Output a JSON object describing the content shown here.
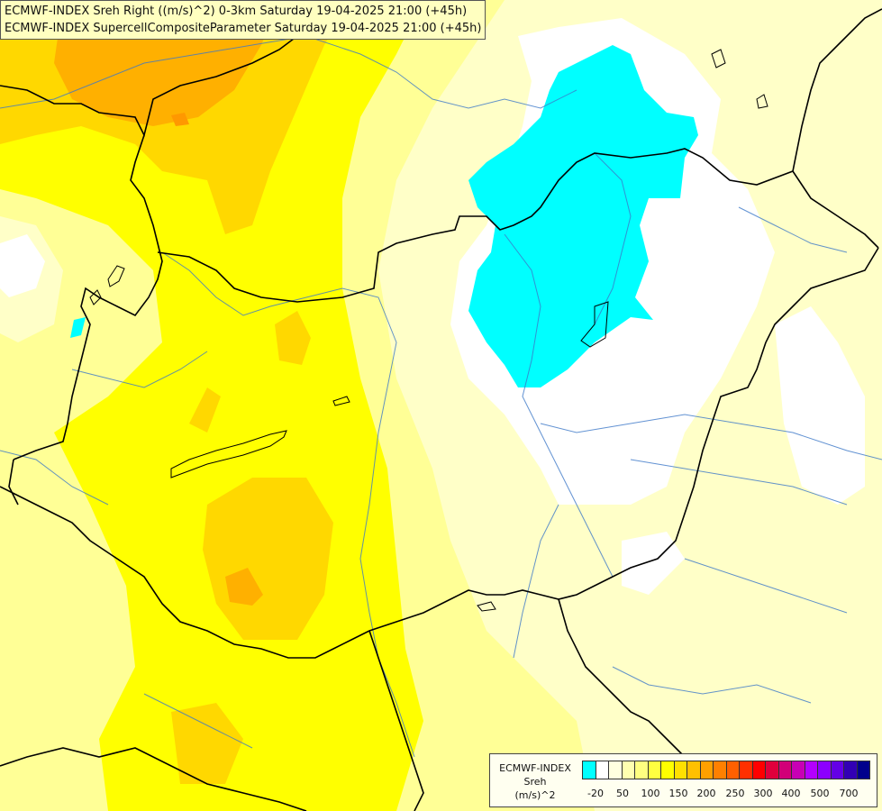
{
  "title_lines": [
    "ECMWF-INDEX Sreh Right ((m/s)^2) 0-3km Saturday 19-04-2025 21:00 (+45h)",
    "ECMWF-INDEX SupercellCompositeParameter Saturday 19-04-2025 21:00 (+45h)"
  ],
  "legend": {
    "model": "ECMWF-INDEX",
    "param": "Sreh",
    "unit": "(m/s)^2",
    "colors": [
      "#00ffff",
      "#ffffff",
      "#ffffe0",
      "#ffffb0",
      "#ffff80",
      "#ffff40",
      "#ffff00",
      "#ffe000",
      "#ffc000",
      "#ffa000",
      "#ff8000",
      "#ff6000",
      "#ff3000",
      "#ff0000",
      "#e0003c",
      "#d20078",
      "#c800b4",
      "#b400ff",
      "#8c00ff",
      "#6400e6",
      "#3200b4",
      "#00008c"
    ],
    "ticks": [
      "-20",
      "50",
      "100",
      "150",
      "200",
      "250",
      "300",
      "400",
      "500",
      "700"
    ]
  },
  "fill_colors": {
    "cyan": "#00ffff",
    "white": "#ffffff",
    "pale": "#ffffc8",
    "light": "#ffff96",
    "yellow": "#ffff00",
    "gold": "#ffd800",
    "orange": "#ffb000",
    "dark_orange": "#ff9800"
  }
}
